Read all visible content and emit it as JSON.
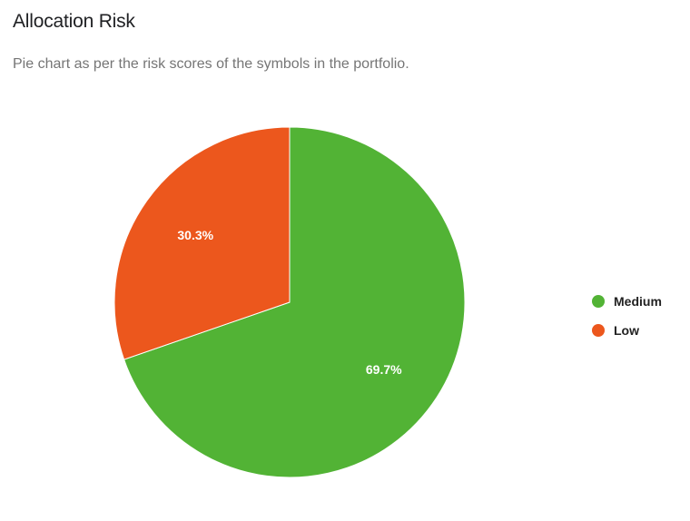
{
  "card": {
    "title": "Allocation Risk",
    "subtitle": "Pie chart as per the risk scores of the symbols in the portfolio."
  },
  "chart_data": {
    "type": "pie",
    "title": "Allocation Risk",
    "subtitle": "Pie chart as per the risk scores of the symbols in the portfolio.",
    "legend_position": "right",
    "slices": [
      {
        "name": "Medium",
        "value": 69.7,
        "label": "69.7%",
        "color": "#52b335"
      },
      {
        "name": "Low",
        "value": 30.3,
        "label": "30.3%",
        "color": "#ec571d"
      }
    ]
  }
}
